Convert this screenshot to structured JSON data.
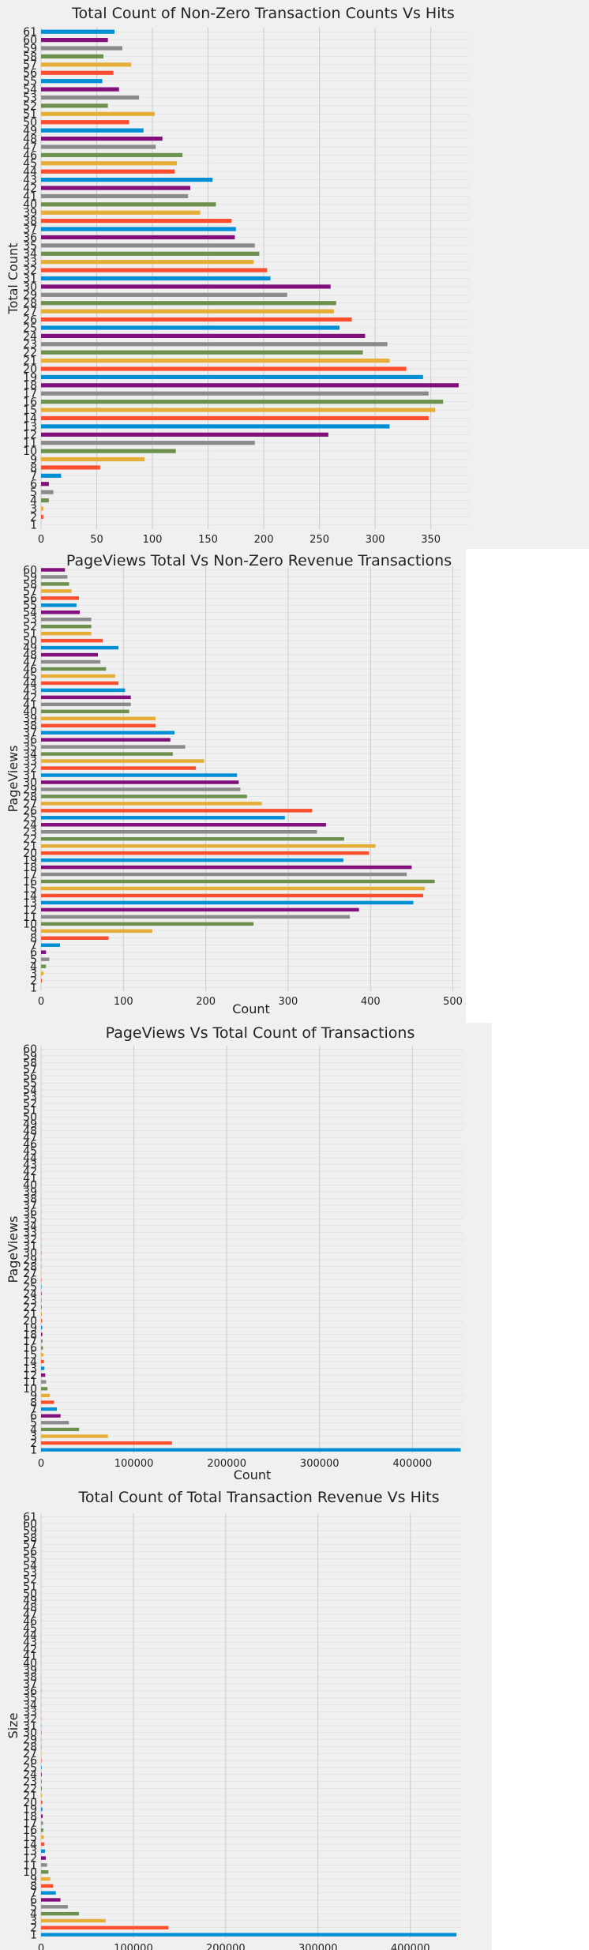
{
  "colors": {
    "palette": [
      "#008fd5",
      "#fc4f30",
      "#e5ae38",
      "#6d904f",
      "#8b8b8b",
      "#810f7c"
    ],
    "background": "#f0f0f0",
    "grid": "#cbcbcb",
    "text": "#222222"
  },
  "chart_data": [
    {
      "type": "bar",
      "orientation": "horizontal",
      "title": "Total Count of Non-Zero Transaction Counts Vs Hits",
      "xlabel": "",
      "ylabel": "Total Count",
      "xlim": [
        0,
        385
      ],
      "xticks": [
        0,
        50,
        100,
        150,
        200,
        250,
        300,
        350
      ],
      "grid": true,
      "categories": [
        "1",
        "2",
        "3",
        "4",
        "5",
        "6",
        "7",
        "8",
        "9",
        "10",
        "11",
        "12",
        "13",
        "14",
        "15",
        "16",
        "17",
        "18",
        "19",
        "20",
        "21",
        "22",
        "23",
        "24",
        "25",
        "26",
        "27",
        "28",
        "29",
        "30",
        "31",
        "32",
        "33",
        "34",
        "35",
        "36",
        "37",
        "38",
        "39",
        "40",
        "41",
        "42",
        "43",
        "44",
        "45",
        "46",
        "47",
        "48",
        "49",
        "50",
        "51",
        "52",
        "53",
        "54",
        "55",
        "56",
        "57",
        "58",
        "59",
        "60",
        "61"
      ],
      "values": [
        0,
        2,
        2,
        7,
        11,
        7,
        18,
        53,
        93,
        121,
        192,
        258,
        313,
        348,
        354,
        361,
        348,
        375,
        343,
        328,
        313,
        289,
        311,
        291,
        268,
        279,
        263,
        265,
        221,
        260,
        206,
        203,
        191,
        196,
        192,
        174,
        175,
        171,
        143,
        157,
        132,
        134,
        154,
        120,
        122,
        127,
        103,
        109,
        92,
        79,
        102,
        60,
        88,
        70,
        55,
        65,
        81,
        56,
        73,
        60,
        66
      ]
    },
    {
      "type": "bar",
      "orientation": "horizontal",
      "title": "PageViews Total Vs Non-Zero Revenue Transactions",
      "xlabel": "Count",
      "ylabel": "PageViews",
      "xlim": [
        0,
        510
      ],
      "xticks": [
        0,
        100,
        200,
        300,
        400,
        500
      ],
      "grid": true,
      "categories": [
        "1",
        "2",
        "3",
        "4",
        "5",
        "6",
        "7",
        "8",
        "9",
        "10",
        "11",
        "12",
        "13",
        "14",
        "15",
        "16",
        "17",
        "18",
        "19",
        "20",
        "21",
        "22",
        "23",
        "24",
        "25",
        "26",
        "27",
        "28",
        "29",
        "30",
        "31",
        "32",
        "33",
        "34",
        "35",
        "36",
        "37",
        "38",
        "39",
        "40",
        "41",
        "42",
        "43",
        "44",
        "45",
        "46",
        "47",
        "48",
        "49",
        "50",
        "51",
        "52",
        "53",
        "54",
        "55",
        "56",
        "57",
        "58",
        "59",
        "60"
      ],
      "values": [
        0,
        1,
        3,
        6,
        10,
        6,
        23,
        82,
        135,
        258,
        375,
        386,
        452,
        464,
        466,
        478,
        444,
        450,
        367,
        398,
        406,
        368,
        335,
        346,
        296,
        329,
        268,
        250,
        242,
        240,
        238,
        188,
        198,
        160,
        175,
        157,
        162,
        139,
        139,
        107,
        109,
        109,
        102,
        94,
        90,
        79,
        72,
        69,
        94,
        75,
        61,
        61,
        61,
        47,
        43,
        46,
        37,
        34,
        32,
        29
      ]
    },
    {
      "type": "bar",
      "orientation": "horizontal",
      "title": "PageViews Vs Total Count of Transactions",
      "xlabel": "Count",
      "ylabel": "PageViews",
      "xlim": [
        0,
        455000
      ],
      "xticks": [
        0,
        100000,
        200000,
        300000,
        400000
      ],
      "grid": true,
      "categories": [
        "1",
        "2",
        "3",
        "4",
        "5",
        "6",
        "7",
        "8",
        "9",
        "10",
        "11",
        "12",
        "13",
        "14",
        "15",
        "16",
        "17",
        "18",
        "19",
        "20",
        "21",
        "22",
        "23",
        "24",
        "25",
        "26",
        "27",
        "28",
        "29",
        "30",
        "31",
        "32",
        "33",
        "34",
        "35",
        "36",
        "37",
        "38",
        "39",
        "40",
        "41",
        "42",
        "43",
        "44",
        "45",
        "46",
        "47",
        "48",
        "49",
        "50",
        "51",
        "52",
        "53",
        "54",
        "55",
        "56",
        "57",
        "58",
        "59",
        "60"
      ],
      "values": [
        452000,
        141000,
        72000,
        41000,
        30000,
        21000,
        17000,
        14000,
        9500,
        7000,
        5500,
        4500,
        3600,
        3000,
        2500,
        2000,
        1700,
        1400,
        1200,
        1000,
        850,
        730,
        630,
        540,
        470,
        410,
        360,
        320,
        280,
        250,
        220,
        200,
        180,
        160,
        140,
        125,
        110,
        100,
        90,
        80,
        72,
        65,
        58,
        52,
        47,
        42,
        38,
        34,
        31,
        28,
        25,
        23,
        21,
        19,
        17,
        15,
        14,
        13,
        12,
        11
      ]
    },
    {
      "type": "bar",
      "orientation": "horizontal",
      "title": "Total Count of Total Transaction Revenue Vs Hits",
      "xlabel": "",
      "ylabel": "Size",
      "xlim": [
        0,
        455000
      ],
      "xticks": [
        0,
        100000,
        200000,
        300000,
        400000
      ],
      "grid": true,
      "categories": [
        "1",
        "2",
        "3",
        "4",
        "5",
        "6",
        "7",
        "8",
        "9",
        "10",
        "11",
        "12",
        "13",
        "14",
        "15",
        "16",
        "17",
        "18",
        "19",
        "20",
        "21",
        "22",
        "23",
        "24",
        "25",
        "26",
        "27",
        "28",
        "29",
        "30",
        "31",
        "32",
        "33",
        "34",
        "35",
        "36",
        "37",
        "38",
        "39",
        "40",
        "41",
        "42",
        "43",
        "44",
        "45",
        "46",
        "47",
        "48",
        "49",
        "50",
        "51",
        "52",
        "53",
        "54",
        "55",
        "56",
        "57",
        "58",
        "59",
        "60",
        "61"
      ],
      "values": [
        450000,
        138000,
        70000,
        41000,
        29000,
        21000,
        16000,
        13000,
        10000,
        8000,
        6500,
        5200,
        4300,
        3600,
        3000,
        2500,
        2100,
        1800,
        1500,
        1300,
        1100,
        950,
        800,
        690,
        600,
        520,
        450,
        390,
        340,
        300,
        260,
        230,
        200,
        180,
        160,
        140,
        125,
        110,
        98,
        88,
        78,
        70,
        62,
        55,
        49,
        44,
        39,
        35,
        31,
        28,
        25,
        22,
        20,
        18,
        16,
        14,
        13,
        12,
        11,
        10,
        9
      ]
    }
  ]
}
